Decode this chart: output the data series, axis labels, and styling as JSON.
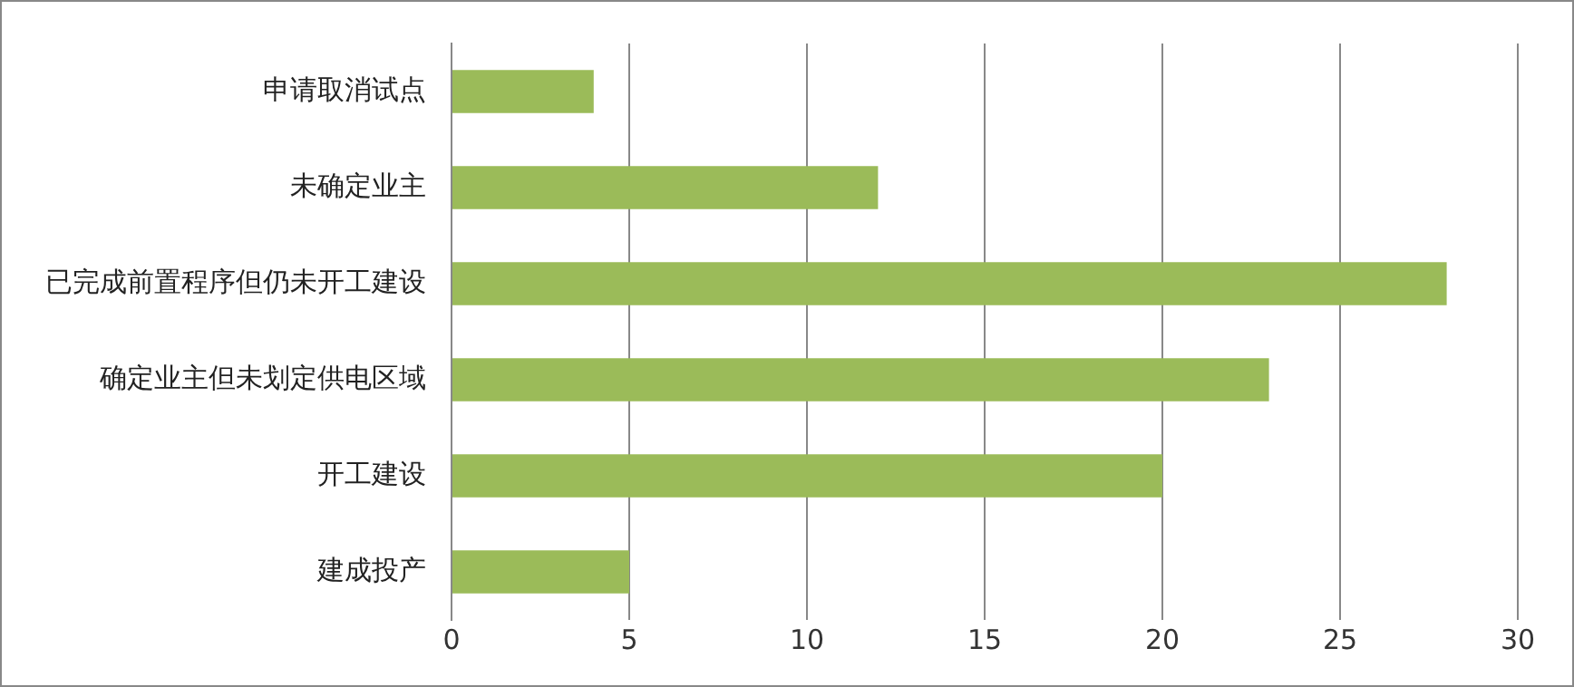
{
  "chart_data": {
    "type": "bar",
    "orientation": "horizontal",
    "categories": [
      "申请取消试点",
      "未确定业主",
      "已完成前置程序但仍未开工建设",
      "确定业主但未划定供电区域",
      "开工建设",
      "建成投产"
    ],
    "values": [
      4,
      12,
      28,
      23,
      20,
      5
    ],
    "color": "#9bbb59",
    "xlim": [
      0,
      30
    ],
    "xticks": [
      0,
      5,
      10,
      15,
      20,
      25,
      30
    ],
    "grid": "x",
    "legend": false
  }
}
